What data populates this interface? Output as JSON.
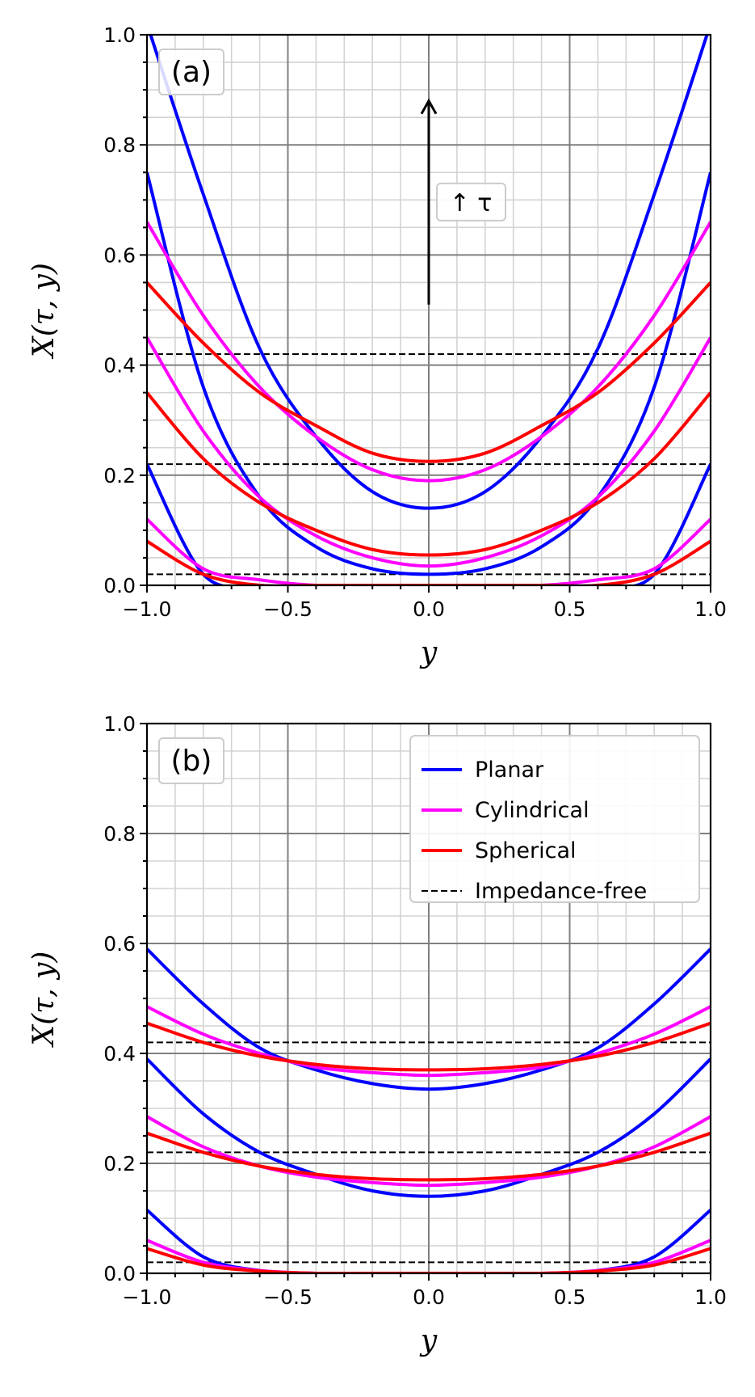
{
  "chart_data": [
    {
      "type": "line",
      "panel_label": "(a)",
      "xlabel": "y",
      "ylabel": "X(τ, y)",
      "xlim": [
        -1.0,
        1.0
      ],
      "ylim": [
        0.0,
        1.0
      ],
      "xticks": [
        "−1.0",
        "−0.5",
        "0.0",
        "0.5",
        "1.0"
      ],
      "yticks": [
        "0.0",
        "0.2",
        "0.4",
        "0.6",
        "0.8",
        "1.0"
      ],
      "grid": true,
      "annotation": {
        "text": "↑ τ",
        "arrow_from": [
          0.0,
          0.51
        ],
        "arrow_to": [
          0.0,
          0.88
        ]
      },
      "reference_lines": [
        0.02,
        0.22,
        0.42
      ],
      "series": [
        {
          "group": "Planar",
          "color": "#0000ff",
          "x": [
            -1.0,
            -0.8,
            -0.6,
            -0.4,
            -0.2,
            0.0,
            0.2,
            0.4,
            0.6,
            0.8,
            1.0
          ],
          "y": [
            0.22,
            0.02,
            0.0,
            0.0,
            0.0,
            0.0,
            0.0,
            0.0,
            0.0,
            0.02,
            0.22
          ]
        },
        {
          "group": "Planar",
          "color": "#0000ff",
          "x": [
            -1.0,
            -0.8,
            -0.6,
            -0.4,
            -0.2,
            0.0,
            0.2,
            0.4,
            0.6,
            0.8,
            1.0
          ],
          "y": [
            0.75,
            0.36,
            0.16,
            0.07,
            0.03,
            0.02,
            0.03,
            0.07,
            0.16,
            0.36,
            0.75
          ]
        },
        {
          "group": "Planar",
          "color": "#0000ff",
          "x": [
            -1.0,
            -0.8,
            -0.6,
            -0.4,
            -0.2,
            0.0,
            0.2,
            0.4,
            0.6,
            0.8,
            1.0
          ],
          "y": [
            1.02,
            0.71,
            0.43,
            0.27,
            0.17,
            0.14,
            0.17,
            0.27,
            0.43,
            0.71,
            1.02
          ]
        },
        {
          "group": "Cylindrical",
          "color": "#ff00ff",
          "x": [
            -1.0,
            -0.8,
            -0.6,
            -0.4,
            -0.2,
            0.0,
            0.2,
            0.4,
            0.6,
            0.8,
            1.0
          ],
          "y": [
            0.12,
            0.03,
            0.01,
            0.0,
            0.0,
            0.0,
            0.0,
            0.0,
            0.01,
            0.03,
            0.12
          ]
        },
        {
          "group": "Cylindrical",
          "color": "#ff00ff",
          "x": [
            -1.0,
            -0.8,
            -0.6,
            -0.4,
            -0.2,
            0.0,
            0.2,
            0.4,
            0.6,
            0.8,
            1.0
          ],
          "y": [
            0.45,
            0.28,
            0.16,
            0.09,
            0.05,
            0.035,
            0.05,
            0.09,
            0.16,
            0.28,
            0.45
          ]
        },
        {
          "group": "Cylindrical",
          "color": "#ff00ff",
          "x": [
            -1.0,
            -0.8,
            -0.6,
            -0.4,
            -0.2,
            0.0,
            0.2,
            0.4,
            0.6,
            0.8,
            1.0
          ],
          "y": [
            0.66,
            0.49,
            0.36,
            0.27,
            0.21,
            0.19,
            0.21,
            0.27,
            0.36,
            0.49,
            0.66
          ]
        },
        {
          "group": "Spherical",
          "color": "#ff0000",
          "x": [
            -1.0,
            -0.8,
            -0.6,
            -0.4,
            -0.2,
            0.0,
            0.2,
            0.4,
            0.6,
            0.8,
            1.0
          ],
          "y": [
            0.08,
            0.02,
            0.0,
            0.0,
            0.0,
            0.0,
            0.0,
            0.0,
            0.0,
            0.02,
            0.08
          ]
        },
        {
          "group": "Spherical",
          "color": "#ff0000",
          "x": [
            -1.0,
            -0.8,
            -0.6,
            -0.4,
            -0.2,
            0.0,
            0.2,
            0.4,
            0.6,
            0.8,
            1.0
          ],
          "y": [
            0.35,
            0.23,
            0.15,
            0.1,
            0.065,
            0.055,
            0.065,
            0.1,
            0.15,
            0.23,
            0.35
          ]
        },
        {
          "group": "Spherical",
          "color": "#ff0000",
          "x": [
            -1.0,
            -0.8,
            -0.6,
            -0.4,
            -0.2,
            0.0,
            0.2,
            0.4,
            0.6,
            0.8,
            1.0
          ],
          "y": [
            0.55,
            0.44,
            0.35,
            0.29,
            0.24,
            0.225,
            0.24,
            0.29,
            0.35,
            0.44,
            0.55
          ]
        }
      ]
    },
    {
      "type": "line",
      "panel_label": "(b)",
      "xlabel": "y",
      "ylabel": "X(τ, y)",
      "xlim": [
        -1.0,
        1.0
      ],
      "ylim": [
        0.0,
        1.0
      ],
      "xticks": [
        "−1.0",
        "−0.5",
        "0.0",
        "0.5",
        "1.0"
      ],
      "yticks": [
        "0.0",
        "0.2",
        "0.4",
        "0.6",
        "0.8",
        "1.0"
      ],
      "grid": true,
      "legend": {
        "placement": "top-right",
        "entries": [
          {
            "label": "Planar",
            "color": "#0000ff",
            "style": "solid"
          },
          {
            "label": "Cylindrical",
            "color": "#ff00ff",
            "style": "solid"
          },
          {
            "label": "Spherical",
            "color": "#ff0000",
            "style": "solid"
          },
          {
            "label": "Impedance-free",
            "color": "#000000",
            "style": "dashed"
          }
        ]
      },
      "reference_lines": [
        0.02,
        0.22,
        0.42
      ],
      "series": [
        {
          "group": "Planar",
          "color": "#0000ff",
          "x": [
            -1.0,
            -0.8,
            -0.6,
            -0.4,
            -0.2,
            0.0,
            0.2,
            0.4,
            0.6,
            0.8,
            1.0
          ],
          "y": [
            0.115,
            0.03,
            0.005,
            0.0,
            0.0,
            0.0,
            0.0,
            0.0,
            0.005,
            0.03,
            0.115
          ]
        },
        {
          "group": "Planar",
          "color": "#0000ff",
          "x": [
            -1.0,
            -0.8,
            -0.6,
            -0.4,
            -0.2,
            0.0,
            0.2,
            0.4,
            0.6,
            0.8,
            1.0
          ],
          "y": [
            0.39,
            0.29,
            0.22,
            0.18,
            0.15,
            0.14,
            0.15,
            0.18,
            0.22,
            0.29,
            0.39
          ]
        },
        {
          "group": "Planar",
          "color": "#0000ff",
          "x": [
            -1.0,
            -0.8,
            -0.6,
            -0.4,
            -0.2,
            0.0,
            0.2,
            0.4,
            0.6,
            0.8,
            1.0
          ],
          "y": [
            0.59,
            0.49,
            0.41,
            0.37,
            0.345,
            0.335,
            0.345,
            0.37,
            0.41,
            0.49,
            0.59
          ]
        },
        {
          "group": "Cylindrical",
          "color": "#ff00ff",
          "x": [
            -1.0,
            -0.8,
            -0.6,
            -0.4,
            -0.2,
            0.0,
            0.2,
            0.4,
            0.6,
            0.8,
            1.0
          ],
          "y": [
            0.06,
            0.02,
            0.005,
            0.0,
            0.0,
            0.0,
            0.0,
            0.0,
            0.005,
            0.02,
            0.06
          ]
        },
        {
          "group": "Cylindrical",
          "color": "#ff00ff",
          "x": [
            -1.0,
            -0.8,
            -0.6,
            -0.4,
            -0.2,
            0.0,
            0.2,
            0.4,
            0.6,
            0.8,
            1.0
          ],
          "y": [
            0.285,
            0.23,
            0.195,
            0.175,
            0.165,
            0.16,
            0.165,
            0.175,
            0.195,
            0.23,
            0.285
          ]
        },
        {
          "group": "Cylindrical",
          "color": "#ff00ff",
          "x": [
            -1.0,
            -0.8,
            -0.6,
            -0.4,
            -0.2,
            0.0,
            0.2,
            0.4,
            0.6,
            0.8,
            1.0
          ],
          "y": [
            0.485,
            0.435,
            0.4,
            0.375,
            0.365,
            0.36,
            0.365,
            0.375,
            0.4,
            0.435,
            0.485
          ]
        },
        {
          "group": "Spherical",
          "color": "#ff0000",
          "x": [
            -1.0,
            -0.8,
            -0.6,
            -0.4,
            -0.2,
            0.0,
            0.2,
            0.4,
            0.6,
            0.8,
            1.0
          ],
          "y": [
            0.045,
            0.015,
            0.004,
            0.0,
            0.0,
            0.0,
            0.0,
            0.0,
            0.004,
            0.015,
            0.045
          ]
        },
        {
          "group": "Spherical",
          "color": "#ff0000",
          "x": [
            -1.0,
            -0.8,
            -0.6,
            -0.4,
            -0.2,
            0.0,
            0.2,
            0.4,
            0.6,
            0.8,
            1.0
          ],
          "y": [
            0.255,
            0.22,
            0.195,
            0.18,
            0.172,
            0.17,
            0.172,
            0.18,
            0.195,
            0.22,
            0.255
          ]
        },
        {
          "group": "Spherical",
          "color": "#ff0000",
          "x": [
            -1.0,
            -0.8,
            -0.6,
            -0.4,
            -0.2,
            0.0,
            0.2,
            0.4,
            0.6,
            0.8,
            1.0
          ],
          "y": [
            0.455,
            0.42,
            0.395,
            0.38,
            0.372,
            0.37,
            0.372,
            0.38,
            0.395,
            0.42,
            0.455
          ]
        }
      ]
    }
  ]
}
